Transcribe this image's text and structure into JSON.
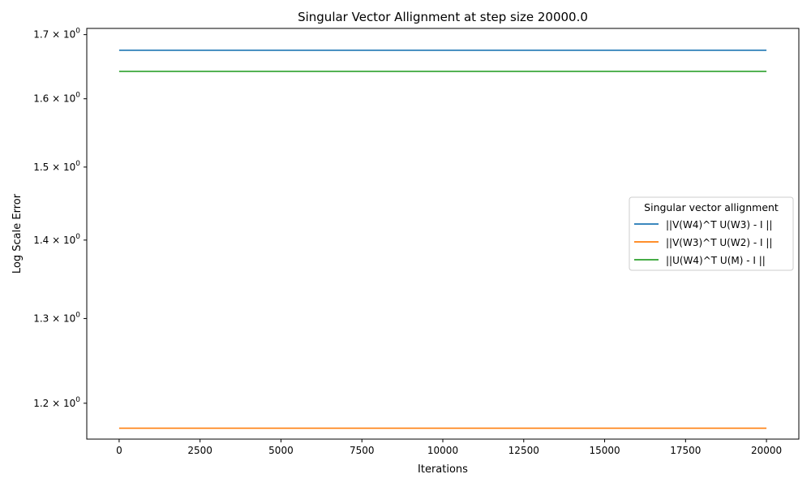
{
  "chart_data": {
    "type": "line",
    "title": "Singular Vector Allignment at step size 20000.0",
    "xlabel": "Iterations",
    "ylabel": "Log Scale Error",
    "xlim": [
      -1000,
      21000
    ],
    "ylim": [
      1.16,
      1.71
    ],
    "yscale": "log",
    "grid": false,
    "x_ticks": [
      0,
      2500,
      5000,
      7500,
      10000,
      12500,
      15000,
      17500,
      20000
    ],
    "y_ticks": [
      {
        "value": 1.2,
        "mantissa": "1.2"
      },
      {
        "value": 1.3,
        "mantissa": "1.3"
      },
      {
        "value": 1.4,
        "mantissa": "1.4"
      },
      {
        "value": 1.5,
        "mantissa": "1.5"
      },
      {
        "value": 1.6,
        "mantissa": "1.6"
      },
      {
        "value": 1.7,
        "mantissa": "1.7"
      }
    ],
    "y_tick_base": "10",
    "y_tick_exponent": "0",
    "legend": {
      "title": "Singular vector allignment",
      "placement": "center-right"
    },
    "series": [
      {
        "name": "||V(W4)^T U(W3) - I ||",
        "color": "#1f77b4",
        "x": [
          0,
          20000
        ],
        "y": [
          1.675,
          1.675
        ]
      },
      {
        "name": "||V(W3)^T U(W2) - I ||",
        "color": "#ff7f0e",
        "x": [
          0,
          20000
        ],
        "y": [
          1.172,
          1.172
        ]
      },
      {
        "name": "||U(W4)^T U(M) - I ||",
        "color": "#2ca02c",
        "x": [
          0,
          20000
        ],
        "y": [
          1.642,
          1.642
        ]
      }
    ]
  }
}
